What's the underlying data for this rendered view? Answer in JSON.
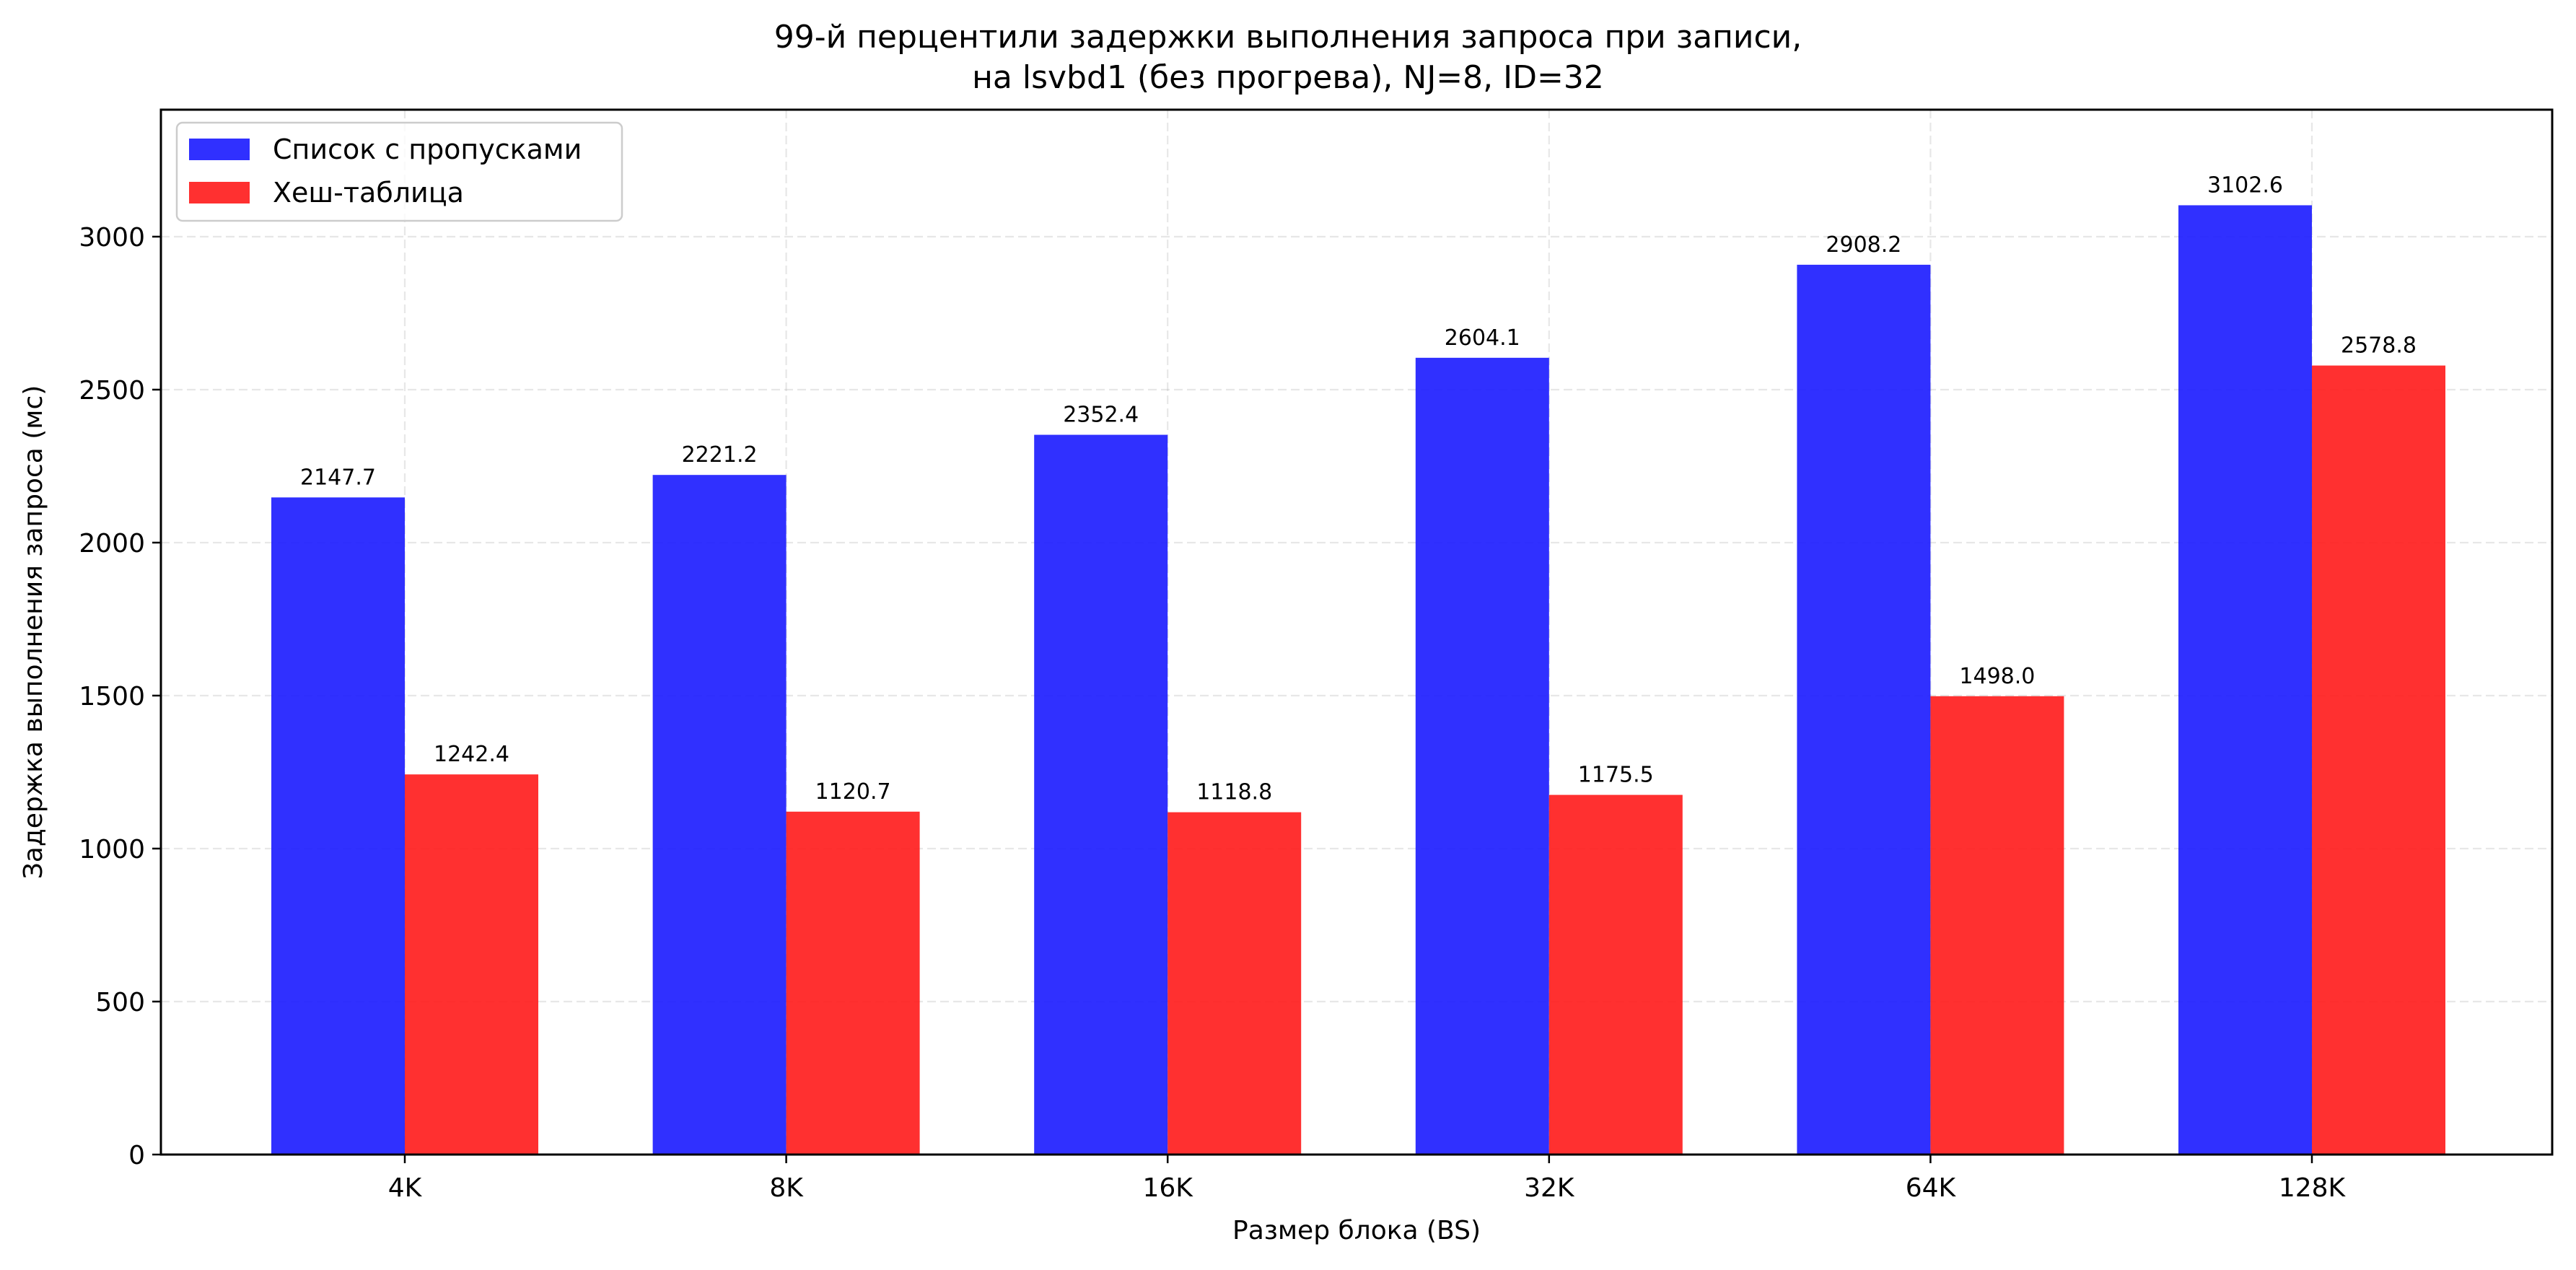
{
  "chart_data": {
    "type": "bar",
    "title_lines": [
      "99-й перцентили задержки выполнения запроса при записи,",
      "на lsvbd1 (без прогрева), NJ=8, ID=32"
    ],
    "xlabel": "Размер блока (BS)",
    "ylabel": "Задержка выполнения запроса (мс)",
    "categories": [
      "4K",
      "8K",
      "16K",
      "32K",
      "64K",
      "128K"
    ],
    "series": [
      {
        "name": "Список с пропусками",
        "color": "#1a1aff",
        "values": [
          2147.7,
          2221.2,
          2352.4,
          2604.1,
          2908.2,
          3102.6
        ],
        "labels": [
          "2147.7",
          "2221.2",
          "2352.4",
          "2604.1",
          "2908.2",
          "3102.6"
        ]
      },
      {
        "name": "Хеш-таблица",
        "color": "#ff1a1a",
        "values": [
          1242.4,
          1120.7,
          1118.8,
          1175.5,
          1498.0,
          2578.8
        ],
        "labels": [
          "1242.4",
          "1120.7",
          "1118.8",
          "1175.5",
          "1498.0",
          "2578.8"
        ]
      }
    ],
    "ylim": [
      0,
      3415
    ],
    "yticks": [
      0,
      500,
      1000,
      1500,
      2000,
      2500,
      3000
    ],
    "grid": true,
    "legend_position": "top-left"
  }
}
